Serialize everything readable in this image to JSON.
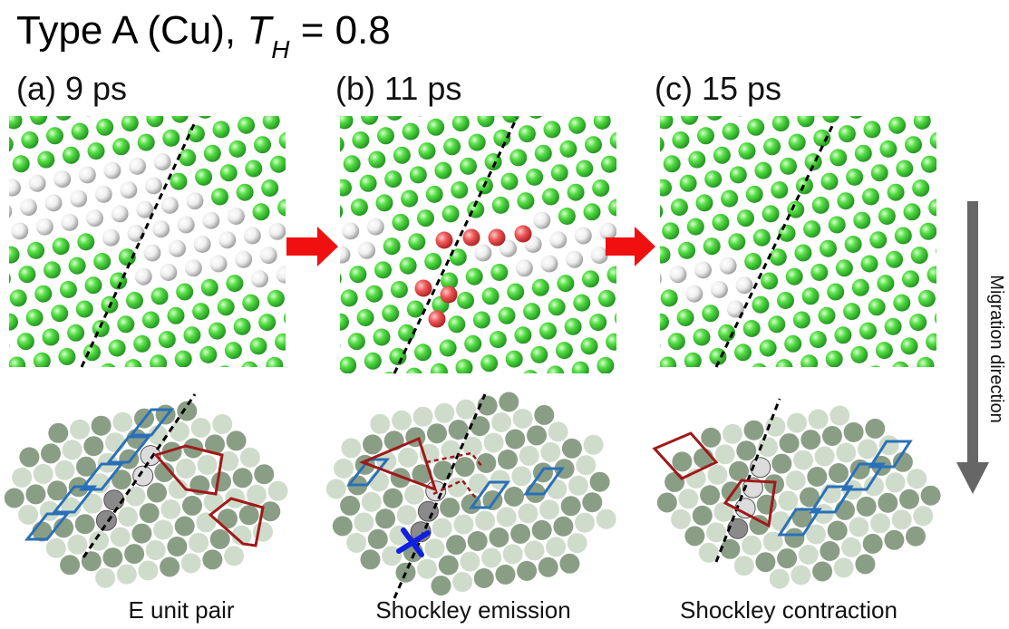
{
  "header": {
    "title_prefix": "Type A (Cu), ",
    "symbol": "T",
    "subscript": "H",
    "title_suffix": " = 0.8"
  },
  "panels": [
    {
      "label": "(a) 9 ps",
      "caption": "E unit pair"
    },
    {
      "label": "(b) 11 ps",
      "caption": "Shockley emission"
    },
    {
      "label": "(c) 15 ps",
      "caption": "Shockley contraction"
    }
  ],
  "side_label": "Migration direction"
}
